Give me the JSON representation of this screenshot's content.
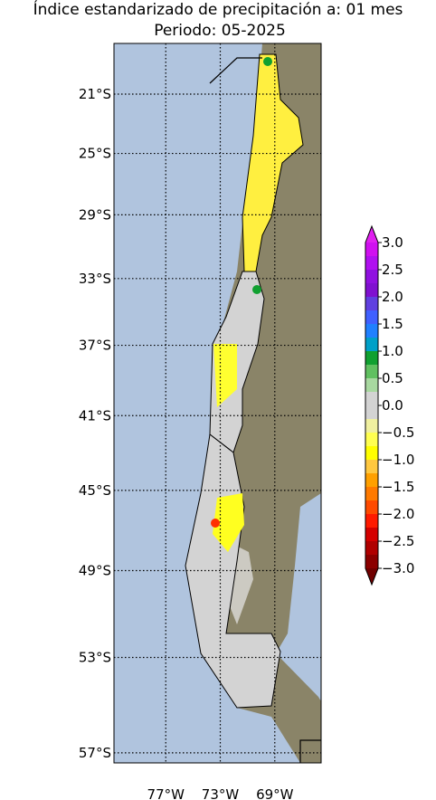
{
  "chart_data": {
    "type": "map",
    "title": "Índice estandarizado de precipitación a: 01 mes",
    "subtitle": "Periodo: 05-2025",
    "xlim": [
      -80.8,
      -65.6
    ],
    "ylim": [
      -57.4,
      -17.5
    ],
    "xticks": [
      {
        "value": -77,
        "label": "77°W"
      },
      {
        "value": -73,
        "label": "73°W"
      },
      {
        "value": -69,
        "label": "69°W"
      }
    ],
    "yticks": [
      {
        "value": -21,
        "label": "21°S"
      },
      {
        "value": -25,
        "label": "25°S"
      },
      {
        "value": -29,
        "label": "29°S"
      },
      {
        "value": -33,
        "label": "33°S"
      },
      {
        "value": -37,
        "label": "37°S"
      },
      {
        "value": -41,
        "label": "41°S"
      },
      {
        "value": -45,
        "label": "45°S"
      },
      {
        "value": -49,
        "label": "49°S"
      },
      {
        "value": -53,
        "label": "53°S"
      },
      {
        "value": -57,
        "label": "57°S"
      }
    ],
    "grid": true,
    "colorbar": {
      "bounds": [
        -3,
        -2.75,
        -2.5,
        -2.25,
        -2,
        -1.75,
        -1.5,
        -1.25,
        -1,
        -0.75,
        -0.5,
        -0.25,
        0.25,
        0.5,
        0.75,
        1,
        1.25,
        1.5,
        1.75,
        2,
        2.25,
        2.5,
        2.75,
        3
      ],
      "colors": [
        "#8b0000",
        "#b00000",
        "#d40000",
        "#ff1a00",
        "#ff4a00",
        "#ff7a00",
        "#ffa000",
        "#ffc840",
        "#ffff00",
        "#ffff50",
        "#f0f0a0",
        "#d3d3d3",
        "#a8d8a0",
        "#60c060",
        "#10a030",
        "#00a0c8",
        "#2080ff",
        "#4060ff",
        "#6040e0",
        "#8010d0",
        "#9010e0",
        "#b010f0",
        "#d010f0"
      ],
      "under_color": "#700000",
      "over_color": "#e020f0",
      "ticks": [
        {
          "value": 3,
          "label": "3.0"
        },
        {
          "value": 2.5,
          "label": "2.5"
        },
        {
          "value": 2,
          "label": "2.0"
        },
        {
          "value": 1.5,
          "label": "1.5"
        },
        {
          "value": 1,
          "label": "1.0"
        },
        {
          "value": 0.5,
          "label": "0.5"
        },
        {
          "value": 0,
          "label": "0.0"
        },
        {
          "value": -0.5,
          "label": "−0.5"
        },
        {
          "value": -1,
          "label": "−1.0"
        },
        {
          "value": -1.5,
          "label": "−1.5"
        },
        {
          "value": -2,
          "label": "−2.0"
        },
        {
          "value": -2.5,
          "label": "−2.5"
        },
        {
          "value": -3,
          "label": "−3.0"
        }
      ]
    }
  }
}
